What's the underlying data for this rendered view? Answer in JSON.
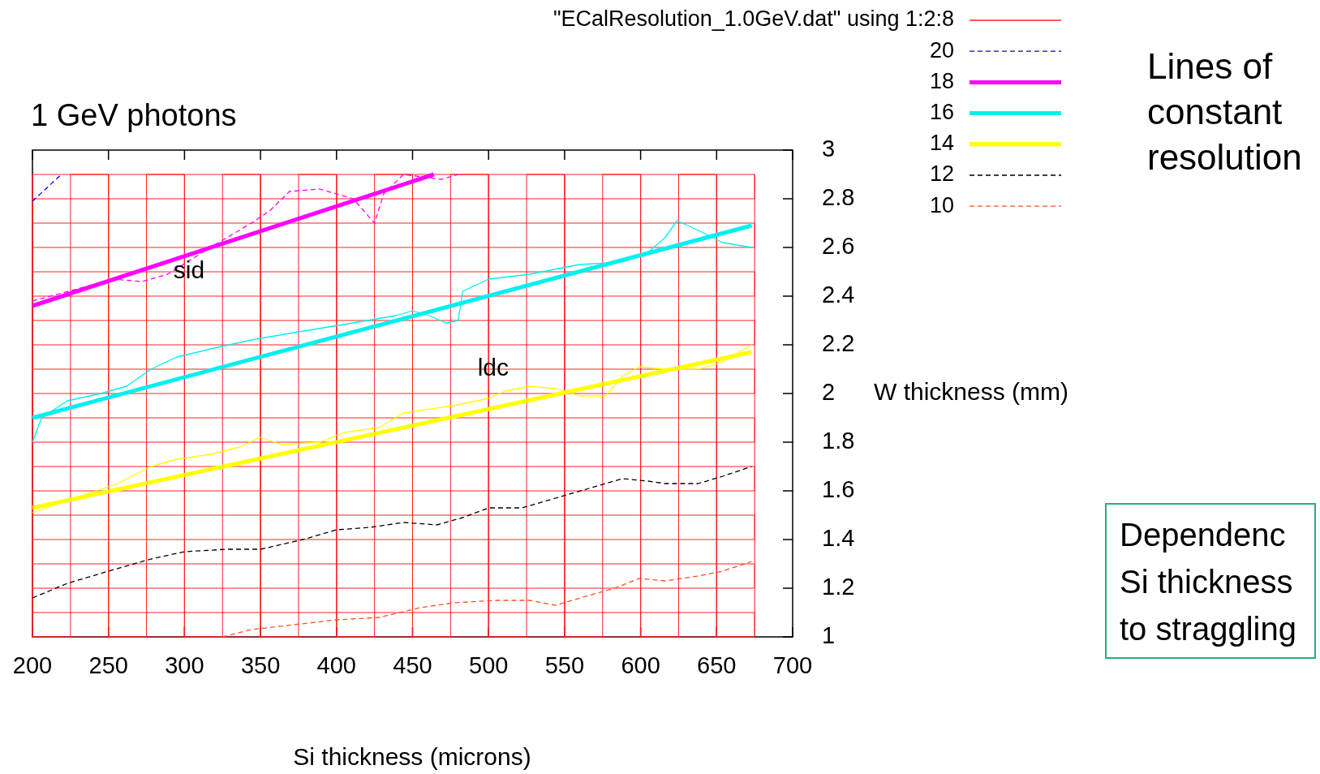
{
  "chart_data": {
    "type": "line",
    "title": "1 GeV photons",
    "xlabel": "Si thickness (microns)",
    "ylabel": "W thickness (mm)",
    "xlim": [
      200,
      700
    ],
    "xticks": [
      200,
      250,
      300,
      350,
      400,
      450,
      500,
      550,
      600,
      650,
      700
    ],
    "ylim": [
      1,
      3
    ],
    "yticks": [
      1,
      1.2,
      1.4,
      1.6,
      1.8,
      2,
      2.2,
      2.4,
      2.6,
      2.8,
      3
    ],
    "legend": "top right",
    "annotations": [
      {
        "text": "sid",
        "x": 303,
        "y": 2.5
      },
      {
        "text": "ldc",
        "x": 503,
        "y": 2.1
      },
      "Lines of\nconstant\nresolution",
      "Dependenc\nSi thickness\nto straggling"
    ],
    "series": [
      {
        "name": "\"ECalResolution_1.0GeV.dat\" using 1:2:8",
        "color": "#ff2020",
        "line_style": "solid",
        "x": [
          200,
          675,
          675,
          200,
          200,
          675,
          675,
          200,
          200,
          675,
          675,
          200,
          200,
          675,
          675,
          200,
          200,
          675,
          675,
          200,
          200,
          675,
          675,
          200,
          200,
          675,
          675,
          200,
          200,
          675,
          675,
          200,
          200,
          675,
          675,
          200,
          200,
          675,
          675,
          200,
          200,
          200,
          225,
          225,
          250,
          250,
          275,
          275,
          300,
          300,
          325,
          325,
          350,
          350,
          375,
          375,
          400,
          400,
          425,
          425,
          450,
          450,
          475,
          475,
          500,
          500,
          525,
          525,
          550,
          550,
          575,
          575,
          600,
          600,
          625,
          625,
          650,
          650,
          675,
          675
        ],
        "values": [
          1,
          1,
          1.1,
          1.1,
          1.2,
          1.2,
          1.3,
          1.3,
          1.4,
          1.4,
          1.5,
          1.5,
          1.6,
          1.6,
          1.7,
          1.7,
          1.8,
          1.8,
          1.9,
          1.9,
          2,
          2,
          2.1,
          2.1,
          2.2,
          2.2,
          2.3,
          2.3,
          2.4,
          2.4,
          2.5,
          2.5,
          2.6,
          2.6,
          2.7,
          2.7,
          2.8,
          2.8,
          2.9,
          2.9,
          2.9,
          1,
          1,
          2.9,
          2.9,
          1,
          1,
          2.9,
          2.9,
          1,
          1,
          2.9,
          2.9,
          1,
          1,
          2.9,
          2.9,
          1,
          1,
          2.9,
          2.9,
          1,
          1,
          2.9,
          2.9,
          1,
          1,
          2.9,
          2.9,
          1,
          1,
          2.9,
          2.9,
          1,
          1,
          2.9,
          2.9,
          1,
          1,
          2.9
        ]
      },
      {
        "name": "20",
        "color": "#0000ff",
        "line_style": "dashed",
        "x": [
          200,
          219
        ],
        "values": [
          2.79,
          2.9
        ]
      },
      {
        "name": "18",
        "color": "#ff00ff",
        "line_style": "solid",
        "x": [
          200,
          464
        ],
        "values": [
          2.36,
          2.9
        ]
      },
      {
        "name": "16",
        "color": "#00f0f0",
        "line_style": "solid",
        "x": [
          200,
          673
        ],
        "values": [
          1.9,
          2.69
        ]
      },
      {
        "name": "14",
        "color": "#ffff00",
        "line_style": "solid",
        "x": [
          200,
          673
        ],
        "values": [
          1.53,
          2.17
        ]
      },
      {
        "name": "12",
        "color": "#000000",
        "line_style": "dashed",
        "x": [
          200,
          223,
          250,
          278,
          300,
          328,
          350,
          378,
          400,
          422,
          444,
          466,
          483,
          500,
          522,
          544,
          566,
          588,
          605,
          616,
          638,
          654,
          673
        ],
        "values": [
          1.16,
          1.22,
          1.27,
          1.32,
          1.35,
          1.36,
          1.36,
          1.4,
          1.44,
          1.45,
          1.47,
          1.46,
          1.49,
          1.53,
          1.53,
          1.57,
          1.61,
          1.65,
          1.64,
          1.63,
          1.63,
          1.66,
          1.7
        ]
      },
      {
        "name": "10",
        "color": "#ff5020",
        "line_style": "dashed",
        "x": [
          325,
          344,
          372,
          400,
          428,
          455,
          477,
          505,
          527,
          544,
          566,
          583,
          599,
          616,
          638,
          654,
          673
        ],
        "values": [
          1,
          1.03,
          1.05,
          1.07,
          1.08,
          1.12,
          1.14,
          1.15,
          1.15,
          1.13,
          1.17,
          1.2,
          1.24,
          1.23,
          1.25,
          1.27,
          1.31
        ]
      },
      {
        "color": "#ff00ff",
        "line_style": "dashed",
        "x": [
          200,
          253,
          272,
          289,
          317,
          344,
          356,
          369,
          389,
          411,
          425,
          431,
          444,
          469,
          480
        ],
        "values": [
          2.38,
          2.47,
          2.46,
          2.49,
          2.6,
          2.7,
          2.75,
          2.83,
          2.84,
          2.8,
          2.7,
          2.82,
          2.9,
          2.88,
          2.9
        ]
      },
      {
        "color": "#00f0f0",
        "line_style": "solid",
        "x": [
          200,
          206,
          223,
          245,
          262,
          278,
          295,
          322,
          344,
          372,
          411,
          439,
          450,
          461,
          472,
          480,
          483,
          500,
          527,
          560,
          588,
          605,
          616,
          624,
          638,
          654,
          673
        ],
        "values": [
          1.8,
          1.9,
          1.97,
          2,
          2.03,
          2.1,
          2.15,
          2.19,
          2.22,
          2.25,
          2.29,
          2.32,
          2.34,
          2.32,
          2.29,
          2.3,
          2.42,
          2.47,
          2.49,
          2.53,
          2.54,
          2.58,
          2.64,
          2.71,
          2.67,
          2.62,
          2.6
        ]
      },
      {
        "color": "#ffff00",
        "line_style": "solid",
        "x": [
          200,
          223,
          256,
          278,
          295,
          317,
          336,
          350,
          364,
          389,
          405,
          428,
          444,
          477,
          500,
          511,
          527,
          544,
          560,
          577,
          588,
          599,
          616,
          638,
          654,
          673
        ],
        "values": [
          1.51,
          1.56,
          1.63,
          1.7,
          1.73,
          1.75,
          1.78,
          1.82,
          1.79,
          1.8,
          1.84,
          1.86,
          1.92,
          1.95,
          1.98,
          2.01,
          2.03,
          2.02,
          1.99,
          1.99,
          2.07,
          2.11,
          2.1,
          2.1,
          2.13,
          2.2
        ]
      }
    ]
  }
}
